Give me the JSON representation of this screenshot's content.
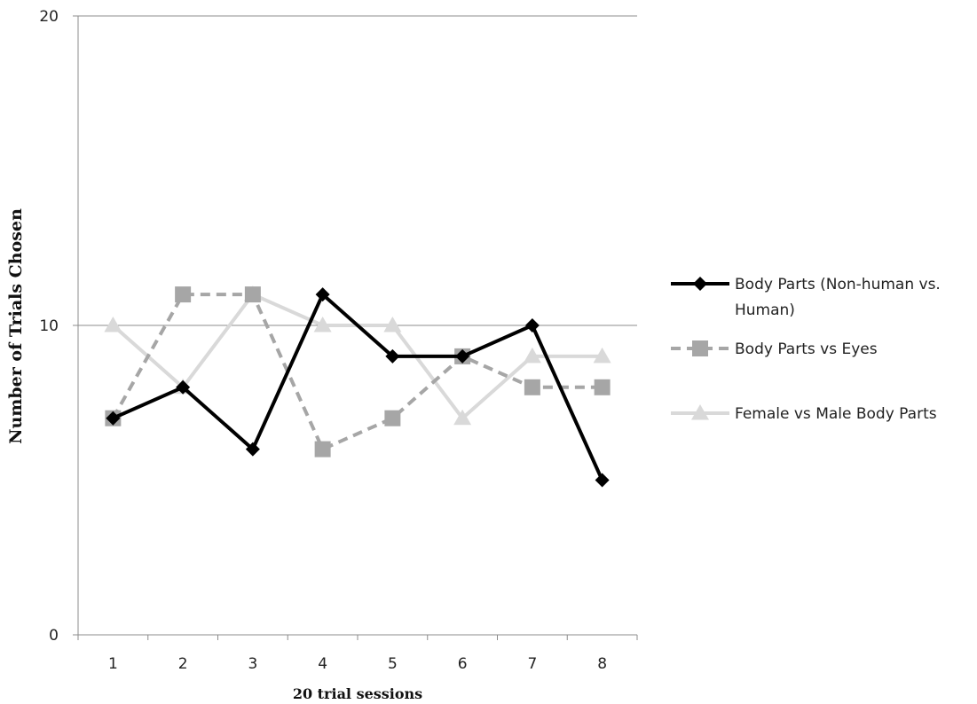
{
  "chart_data": {
    "type": "line",
    "title": "",
    "xlabel": "20 trial sessions",
    "ylabel": "Number of Trials Chosen",
    "categories": [
      "1",
      "2",
      "3",
      "4",
      "5",
      "6",
      "7",
      "8"
    ],
    "ylim": [
      0,
      20
    ],
    "yticks": [
      "0",
      "10",
      "20"
    ],
    "grid": "horizontal",
    "legend_position": "right",
    "series": [
      {
        "name": "Body Parts (Non-human vs. Human)",
        "legend_lines": [
          "Body Parts (Non-human vs.",
          "Human)"
        ],
        "values": [
          7,
          8,
          6,
          11,
          9,
          9,
          10,
          5
        ],
        "color": "#000000",
        "dash": "solid",
        "marker": "diamond"
      },
      {
        "name": "Body Parts vs Eyes",
        "legend_lines": [
          "Body Parts vs Eyes"
        ],
        "values": [
          7,
          11,
          11,
          6,
          7,
          9,
          8,
          8
        ],
        "color": "#a6a6a6",
        "dash": "dashed",
        "marker": "square"
      },
      {
        "name": "Female vs Male Body Parts",
        "legend_lines": [
          "Female vs Male Body Parts"
        ],
        "values": [
          10,
          8,
          11,
          10,
          10,
          7,
          9,
          9
        ],
        "color": "#d9d9d9",
        "dash": "solid",
        "marker": "triangle"
      }
    ]
  }
}
